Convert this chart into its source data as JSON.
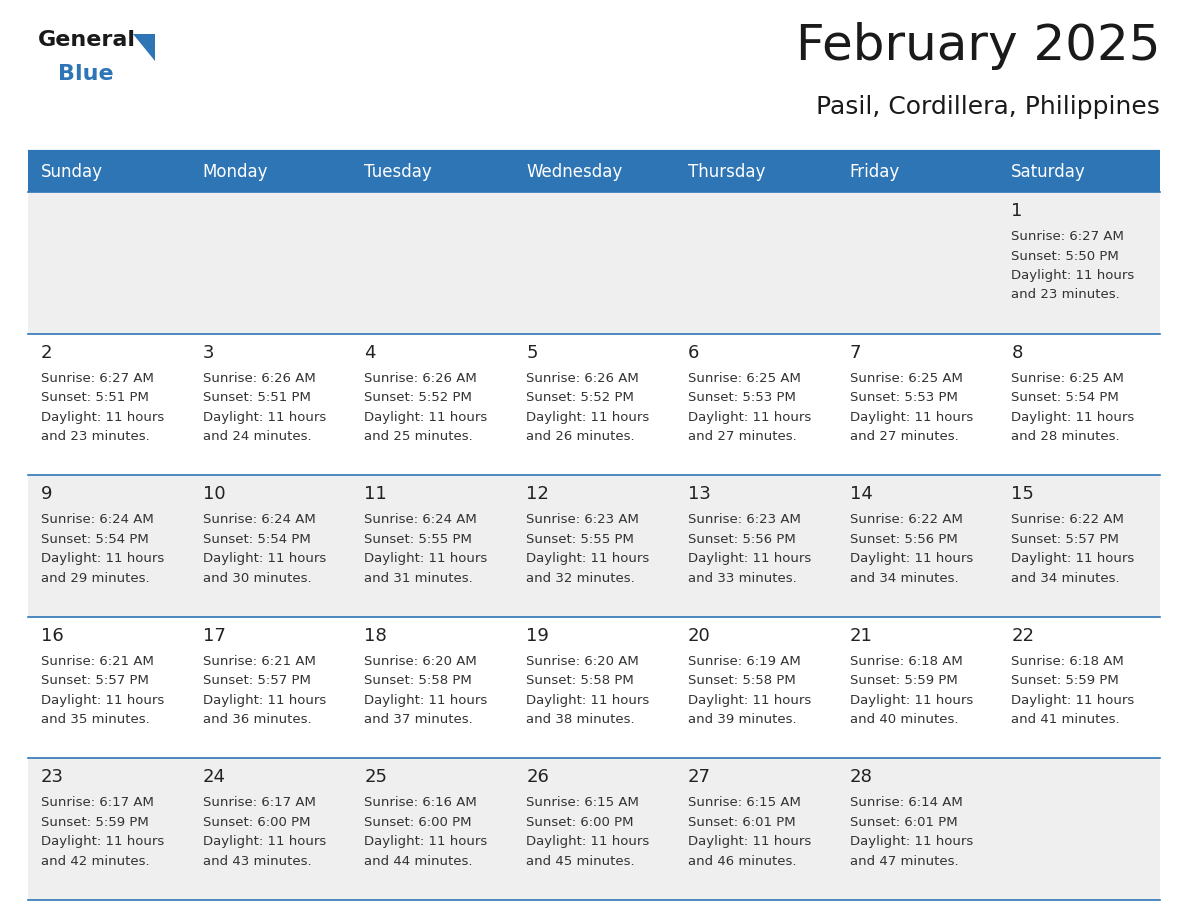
{
  "title": "February 2025",
  "subtitle": "Pasil, Cordillera, Philippines",
  "header_bg": "#2E75B6",
  "header_text_color": "#FFFFFF",
  "cell_bg_light": "#EFEFEF",
  "cell_bg_white": "#FFFFFF",
  "day_number_color": "#222222",
  "cell_text_color": "#333333",
  "divider_color": "#2E75B6",
  "days_of_week": [
    "Sunday",
    "Monday",
    "Tuesday",
    "Wednesday",
    "Thursday",
    "Friday",
    "Saturday"
  ],
  "calendar_data": [
    [
      {
        "day": null,
        "sunrise": null,
        "sunset": null,
        "daylight_h": null,
        "daylight_m": null
      },
      {
        "day": null,
        "sunrise": null,
        "sunset": null,
        "daylight_h": null,
        "daylight_m": null
      },
      {
        "day": null,
        "sunrise": null,
        "sunset": null,
        "daylight_h": null,
        "daylight_m": null
      },
      {
        "day": null,
        "sunrise": null,
        "sunset": null,
        "daylight_h": null,
        "daylight_m": null
      },
      {
        "day": null,
        "sunrise": null,
        "sunset": null,
        "daylight_h": null,
        "daylight_m": null
      },
      {
        "day": null,
        "sunrise": null,
        "sunset": null,
        "daylight_h": null,
        "daylight_m": null
      },
      {
        "day": 1,
        "sunrise": "6:27 AM",
        "sunset": "5:50 PM",
        "daylight_h": "11 hours",
        "daylight_m": "and 23 minutes."
      }
    ],
    [
      {
        "day": 2,
        "sunrise": "6:27 AM",
        "sunset": "5:51 PM",
        "daylight_h": "11 hours",
        "daylight_m": "and 23 minutes."
      },
      {
        "day": 3,
        "sunrise": "6:26 AM",
        "sunset": "5:51 PM",
        "daylight_h": "11 hours",
        "daylight_m": "and 24 minutes."
      },
      {
        "day": 4,
        "sunrise": "6:26 AM",
        "sunset": "5:52 PM",
        "daylight_h": "11 hours",
        "daylight_m": "and 25 minutes."
      },
      {
        "day": 5,
        "sunrise": "6:26 AM",
        "sunset": "5:52 PM",
        "daylight_h": "11 hours",
        "daylight_m": "and 26 minutes."
      },
      {
        "day": 6,
        "sunrise": "6:25 AM",
        "sunset": "5:53 PM",
        "daylight_h": "11 hours",
        "daylight_m": "and 27 minutes."
      },
      {
        "day": 7,
        "sunrise": "6:25 AM",
        "sunset": "5:53 PM",
        "daylight_h": "11 hours",
        "daylight_m": "and 27 minutes."
      },
      {
        "day": 8,
        "sunrise": "6:25 AM",
        "sunset": "5:54 PM",
        "daylight_h": "11 hours",
        "daylight_m": "and 28 minutes."
      }
    ],
    [
      {
        "day": 9,
        "sunrise": "6:24 AM",
        "sunset": "5:54 PM",
        "daylight_h": "11 hours",
        "daylight_m": "and 29 minutes."
      },
      {
        "day": 10,
        "sunrise": "6:24 AM",
        "sunset": "5:54 PM",
        "daylight_h": "11 hours",
        "daylight_m": "and 30 minutes."
      },
      {
        "day": 11,
        "sunrise": "6:24 AM",
        "sunset": "5:55 PM",
        "daylight_h": "11 hours",
        "daylight_m": "and 31 minutes."
      },
      {
        "day": 12,
        "sunrise": "6:23 AM",
        "sunset": "5:55 PM",
        "daylight_h": "11 hours",
        "daylight_m": "and 32 minutes."
      },
      {
        "day": 13,
        "sunrise": "6:23 AM",
        "sunset": "5:56 PM",
        "daylight_h": "11 hours",
        "daylight_m": "and 33 minutes."
      },
      {
        "day": 14,
        "sunrise": "6:22 AM",
        "sunset": "5:56 PM",
        "daylight_h": "11 hours",
        "daylight_m": "and 34 minutes."
      },
      {
        "day": 15,
        "sunrise": "6:22 AM",
        "sunset": "5:57 PM",
        "daylight_h": "11 hours",
        "daylight_m": "and 34 minutes."
      }
    ],
    [
      {
        "day": 16,
        "sunrise": "6:21 AM",
        "sunset": "5:57 PM",
        "daylight_h": "11 hours",
        "daylight_m": "and 35 minutes."
      },
      {
        "day": 17,
        "sunrise": "6:21 AM",
        "sunset": "5:57 PM",
        "daylight_h": "11 hours",
        "daylight_m": "and 36 minutes."
      },
      {
        "day": 18,
        "sunrise": "6:20 AM",
        "sunset": "5:58 PM",
        "daylight_h": "11 hours",
        "daylight_m": "and 37 minutes."
      },
      {
        "day": 19,
        "sunrise": "6:20 AM",
        "sunset": "5:58 PM",
        "daylight_h": "11 hours",
        "daylight_m": "and 38 minutes."
      },
      {
        "day": 20,
        "sunrise": "6:19 AM",
        "sunset": "5:58 PM",
        "daylight_h": "11 hours",
        "daylight_m": "and 39 minutes."
      },
      {
        "day": 21,
        "sunrise": "6:18 AM",
        "sunset": "5:59 PM",
        "daylight_h": "11 hours",
        "daylight_m": "and 40 minutes."
      },
      {
        "day": 22,
        "sunrise": "6:18 AM",
        "sunset": "5:59 PM",
        "daylight_h": "11 hours",
        "daylight_m": "and 41 minutes."
      }
    ],
    [
      {
        "day": 23,
        "sunrise": "6:17 AM",
        "sunset": "5:59 PM",
        "daylight_h": "11 hours",
        "daylight_m": "and 42 minutes."
      },
      {
        "day": 24,
        "sunrise": "6:17 AM",
        "sunset": "6:00 PM",
        "daylight_h": "11 hours",
        "daylight_m": "and 43 minutes."
      },
      {
        "day": 25,
        "sunrise": "6:16 AM",
        "sunset": "6:00 PM",
        "daylight_h": "11 hours",
        "daylight_m": "and 44 minutes."
      },
      {
        "day": 26,
        "sunrise": "6:15 AM",
        "sunset": "6:00 PM",
        "daylight_h": "11 hours",
        "daylight_m": "and 45 minutes."
      },
      {
        "day": 27,
        "sunrise": "6:15 AM",
        "sunset": "6:01 PM",
        "daylight_h": "11 hours",
        "daylight_m": "and 46 minutes."
      },
      {
        "day": 28,
        "sunrise": "6:14 AM",
        "sunset": "6:01 PM",
        "daylight_h": "11 hours",
        "daylight_m": "and 47 minutes."
      },
      {
        "day": null,
        "sunrise": null,
        "sunset": null,
        "daylight_h": null,
        "daylight_m": null
      }
    ]
  ],
  "num_rows": 5,
  "num_cols": 7,
  "row_bg_pattern": [
    "light",
    "white",
    "light",
    "white",
    "light"
  ],
  "title_fontsize": 36,
  "subtitle_fontsize": 18,
  "header_fontsize": 12,
  "day_num_fontsize": 13,
  "cell_fontsize": 9.5
}
